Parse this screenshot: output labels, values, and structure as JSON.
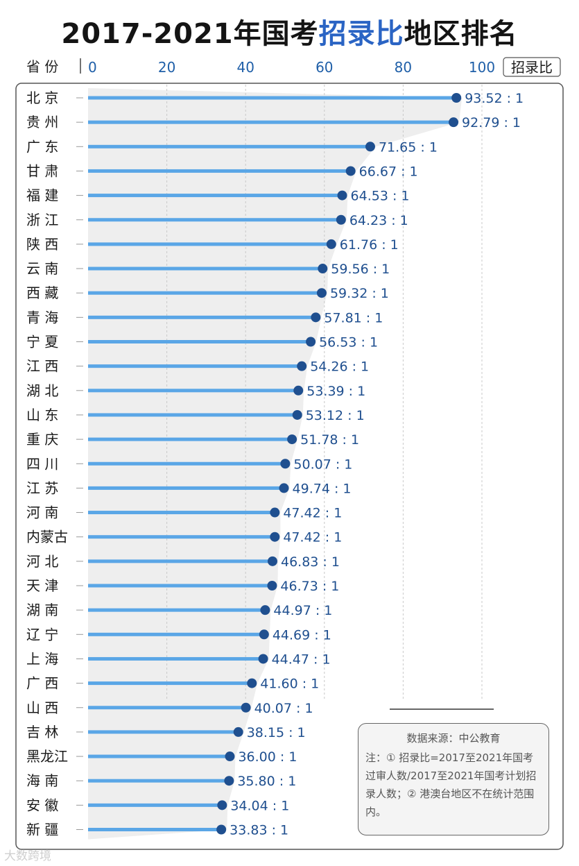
{
  "title_parts": [
    "2017-2021年国考",
    "招录比",
    "地区排名"
  ],
  "colors": {
    "accent": "#2a64c4",
    "bar": "#5aa6e6",
    "dot": "#1f4f8f",
    "label": "#1f4f8f",
    "highlight_bg": "#eeeeee"
  },
  "chart_data": {
    "type": "lollipop-bar",
    "title": "2017-2021年国考招录比地区排名",
    "xlabel": "招录比",
    "ylabel": "省 份",
    "xlim": [
      0,
      100
    ],
    "xticks": [
      "0",
      "20",
      "40",
      "60",
      "80",
      "100"
    ],
    "value_suffix": " : 1",
    "categories": [
      "北 京",
      "贵 州",
      "广 东",
      "甘 肃",
      "福 建",
      "浙 江",
      "陕 西",
      "云 南",
      "西 藏",
      "青 海",
      "宁 夏",
      "江 西",
      "湖 北",
      "山 东",
      "重 庆",
      "四 川",
      "江 苏",
      "河 南",
      "内蒙古",
      "河 北",
      "天 津",
      "湖 南",
      "辽 宁",
      "上 海",
      "广 西",
      "山 西",
      "吉 林",
      "黑龙江",
      "海 南",
      "安 徽",
      "新 疆"
    ],
    "values": [
      93.52,
      92.79,
      71.65,
      66.67,
      64.53,
      64.23,
      61.76,
      59.56,
      59.32,
      57.81,
      56.53,
      54.26,
      53.39,
      53.12,
      51.78,
      50.07,
      49.74,
      47.42,
      47.42,
      46.83,
      46.73,
      44.97,
      44.69,
      44.47,
      41.6,
      40.07,
      38.15,
      36.0,
      35.8,
      34.04,
      33.83
    ],
    "value_labels": [
      "93.52",
      "92.79",
      "71.65",
      "66.67",
      "64.53",
      "64.23",
      "61.76",
      "59.56",
      "59.32",
      "57.81",
      "56.53",
      "54.26",
      "53.39",
      "53.12",
      "51.78",
      "50.07",
      "49.74",
      "47.42",
      "47.42",
      "46.83",
      "46.73",
      "44.97",
      "44.69",
      "44.47",
      "41.60",
      "40.07",
      "38.15",
      "36.00",
      "35.80",
      "34.04",
      "33.83"
    ]
  },
  "legend": {
    "source": "数据来源：中公教育",
    "note": "注：① 招录比=2017至2021年国考过审人数/2017至2021年国考计划招录人数；② 港澳台地区不在统计范围内。"
  },
  "watermark": "大数跨境"
}
